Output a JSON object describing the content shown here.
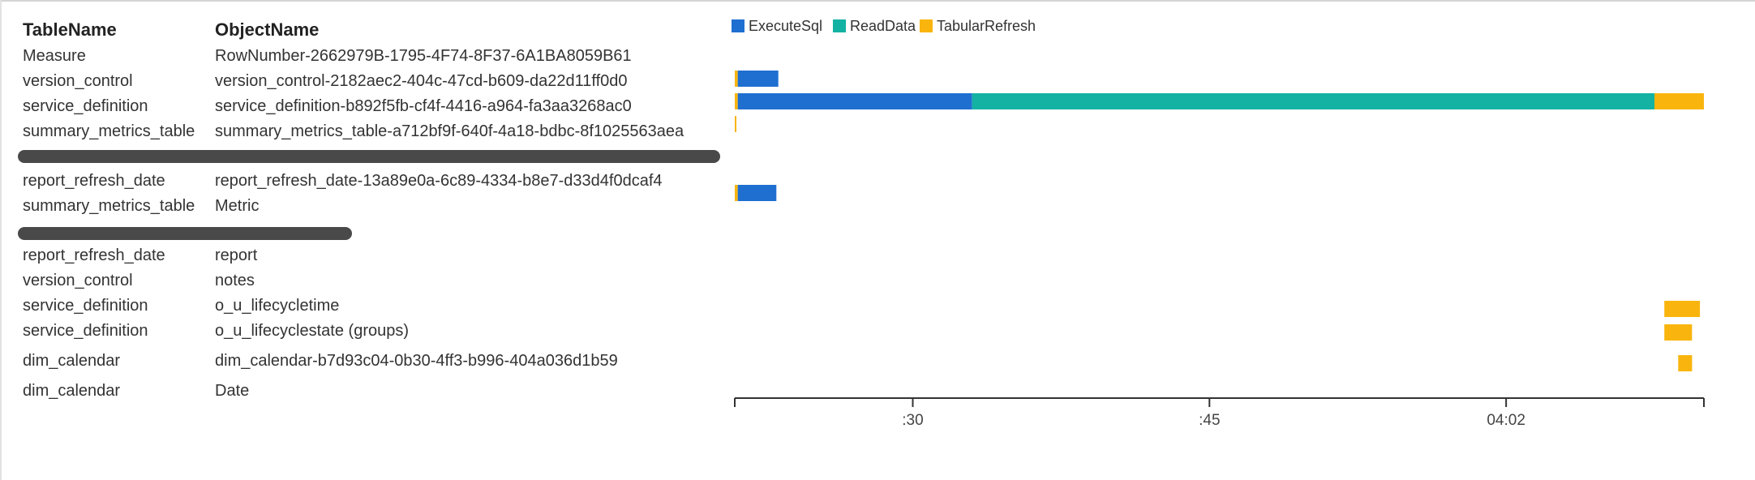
{
  "table": {
    "headers": {
      "table_name": "TableName",
      "object_name": "ObjectName"
    },
    "rows": [
      {
        "table_name": "Measure",
        "object_name": "RowNumber-2662979B-1795-4F74-8F37-6A1BA8059B61",
        "redacted": false
      },
      {
        "table_name": "version_control",
        "object_name": "version_control-2182aec2-404c-47cd-b609-da22d11ff0d0",
        "redacted": false
      },
      {
        "table_name": "service_definition",
        "object_name": "service_definition-b892f5fb-cf4f-4416-a964-fa3aa3268ac0",
        "redacted": false
      },
      {
        "table_name": "summary_metrics_table",
        "object_name": "summary_metrics_table-a712bf9f-640f-4a18-bdbc-8f1025563aea",
        "redacted": false
      },
      {
        "table_name": "",
        "object_name": "",
        "redacted": true
      },
      {
        "table_name": "report_refresh_date",
        "object_name": "report_refresh_date-13a89e0a-6c89-4334-b8e7-d33d4f0dcaf4",
        "redacted": false
      },
      {
        "table_name": "summary_metrics_table",
        "object_name": "Metric",
        "redacted": false
      },
      {
        "table_name": "",
        "object_name": "",
        "redacted": true
      },
      {
        "table_name": "report_refresh_date",
        "object_name": "report",
        "redacted": false
      },
      {
        "table_name": "version_control",
        "object_name": "notes",
        "redacted": false
      },
      {
        "table_name": "service_definition",
        "object_name": "o_u_lifecycletime",
        "redacted": false
      },
      {
        "table_name": "service_definition",
        "object_name": "o_u_lifecyclestate (groups)",
        "redacted": false
      },
      {
        "table_name": "dim_calendar",
        "object_name": "dim_calendar-b7d93c04-0b30-4ff3-b996-404a036d1b59",
        "redacted": false
      },
      {
        "table_name": "dim_calendar",
        "object_name": "Date",
        "redacted": false
      }
    ]
  },
  "chart_data": {
    "type": "bar",
    "orientation": "horizontal-gantt",
    "legend": [
      {
        "name": "ExecuteSql",
        "color": "#1f6fd1"
      },
      {
        "name": "ReadData",
        "color": "#14b2a3"
      },
      {
        "name": "TabularRefresh",
        "color": "#f9b50e"
      }
    ],
    "legend_position": "top-left",
    "x_axis": {
      "unit": "seconds from 03:44",
      "min_seconds": 15,
      "max_seconds": 64,
      "ticks": [
        {
          "label": ":30",
          "seconds": 24
        },
        {
          "label": ":45",
          "seconds": 39
        },
        {
          "label": "04:02",
          "seconds": 54
        }
      ]
    },
    "grid": false,
    "bars": [
      {
        "row": 1,
        "series": "TabularRefresh",
        "start": 15.0,
        "end": 15.15
      },
      {
        "row": 1,
        "series": "ExecuteSql",
        "start": 15.15,
        "end": 17.2
      },
      {
        "row": 2,
        "series": "TabularRefresh",
        "start": 15.0,
        "end": 15.15
      },
      {
        "row": 2,
        "series": "ExecuteSql",
        "start": 15.15,
        "end": 27.0
      },
      {
        "row": 2,
        "series": "ReadData",
        "start": 27.0,
        "end": 61.5
      },
      {
        "row": 2,
        "series": "TabularRefresh",
        "start": 61.5,
        "end": 64.0
      },
      {
        "row": 3,
        "series": "TabularRefresh",
        "start": 15.0,
        "end": 15.08
      },
      {
        "row": 5,
        "series": "TabularRefresh",
        "start": 15.0,
        "end": 15.15
      },
      {
        "row": 5,
        "series": "ExecuteSql",
        "start": 15.15,
        "end": 17.1
      },
      {
        "row": 10,
        "series": "TabularRefresh",
        "start": 62.0,
        "end": 63.8
      },
      {
        "row": 11,
        "series": "TabularRefresh",
        "start": 62.0,
        "end": 63.4
      },
      {
        "row": 12,
        "series": "TabularRefresh",
        "start": 62.7,
        "end": 63.4
      }
    ]
  }
}
